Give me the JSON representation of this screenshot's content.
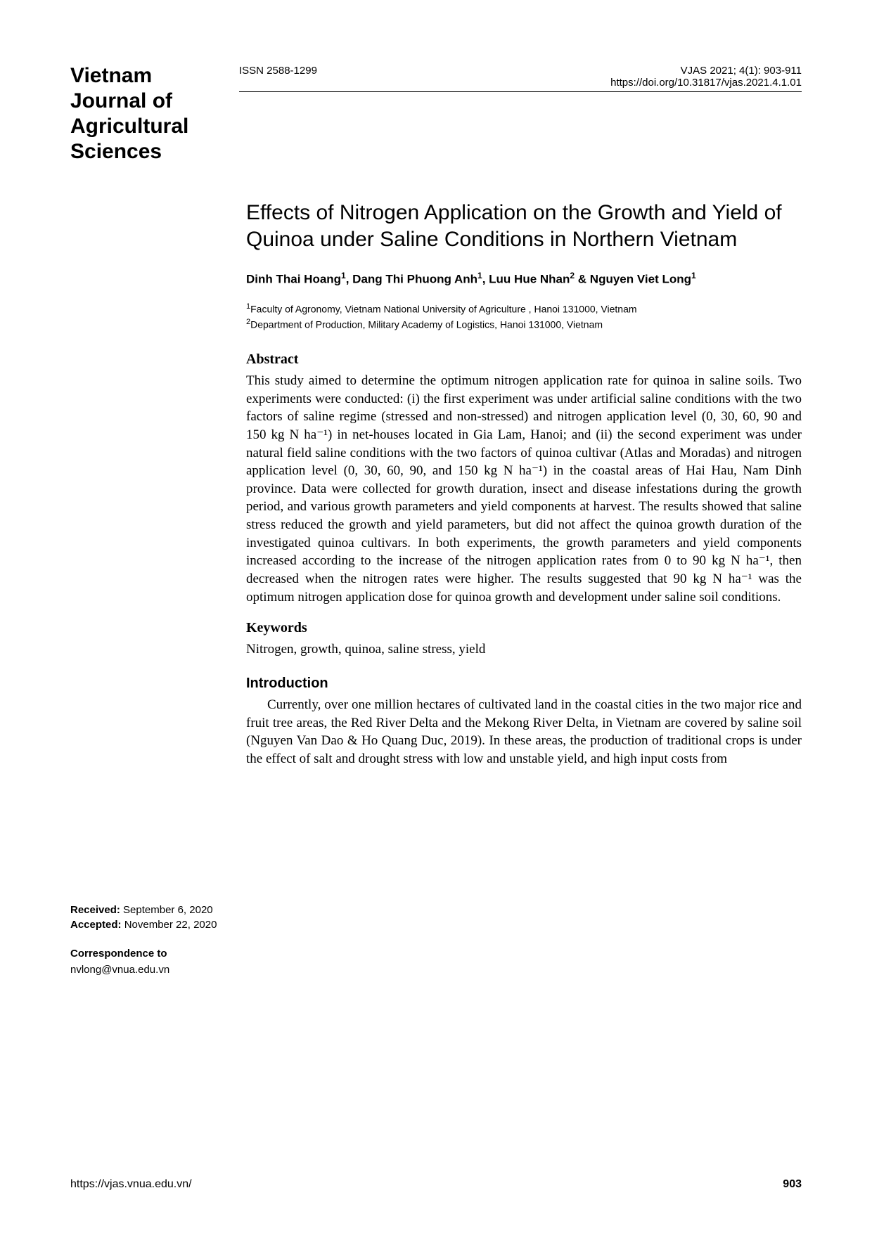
{
  "header": {
    "journal_name": "Vietnam Journal of Agricultural Sciences",
    "issn": "ISSN 2588-1299",
    "citation": "VJAS 2021; 4(1): 903-911",
    "doi": "https://doi.org/10.31817/vjas.2021.4.1.01"
  },
  "article": {
    "title": "Effects of Nitrogen Application on the Growth and Yield of Quinoa under Saline Conditions in Northern Vietnam",
    "authors_html": "Dinh Thai Hoang¹, Dang Thi Phuong Anh¹, Luu Hue Nhan² & Nguyen Viet Long¹",
    "affiliation1": "¹Faculty of Agronomy, Vietnam National University of Agriculture , Hanoi 131000, Vietnam",
    "affiliation2": "²Department of Production, Military Academy of Logistics, Hanoi 131000, Vietnam"
  },
  "sections": {
    "abstract_heading": "Abstract",
    "abstract_text": "This study aimed to determine the optimum nitrogen application rate for quinoa in saline soils. Two experiments were conducted: (i) the first experiment was under artificial saline conditions with the two factors of saline regime (stressed and non-stressed) and nitrogen application level (0, 30, 60, 90 and 150 kg N ha⁻¹) in net-houses located in Gia Lam, Hanoi; and (ii) the second experiment was under natural field saline conditions with the two factors of quinoa cultivar (Atlas and Moradas) and nitrogen application level (0, 30, 60, 90, and 150 kg N ha⁻¹) in the coastal areas of Hai Hau, Nam Dinh province. Data were collected for growth duration, insect and disease infestations during the growth period, and various growth parameters and yield components at harvest. The results showed that saline stress reduced the growth and yield parameters, but did not affect the quinoa growth duration of the investigated quinoa cultivars. In both experiments, the growth parameters and yield components increased according to the increase of the nitrogen application rates from 0 to 90 kg N ha⁻¹, then decreased when the nitrogen rates were higher. The results suggested that 90 kg N ha⁻¹ was the optimum nitrogen application dose for quinoa growth and development under saline soil conditions.",
    "keywords_heading": "Keywords",
    "keywords_text": "Nitrogen, growth, quinoa, saline stress, yield",
    "intro_heading": "Introduction",
    "intro_text": "Currently, over one million hectares of cultivated land in the coastal cities in the two major rice and fruit tree areas, the Red River Delta and the Mekong River Delta, in Vietnam are covered by saline soil (Nguyen Van Dao & Ho Quang Duc, 2019). In these areas, the production of traditional crops is under the effect of salt and drought stress with low and unstable yield, and high input costs from"
  },
  "sidebar": {
    "received_label": "Received:",
    "received_date": " September 6, 2020",
    "accepted_label": "Accepted:",
    "accepted_date": " November 22, 2020",
    "correspondence_heading": "Correspondence to",
    "correspondence_email": "nvlong@vnua.edu.vn"
  },
  "footer": {
    "url": "https://vjas.vnua.edu.vn/",
    "page_number": "903"
  }
}
